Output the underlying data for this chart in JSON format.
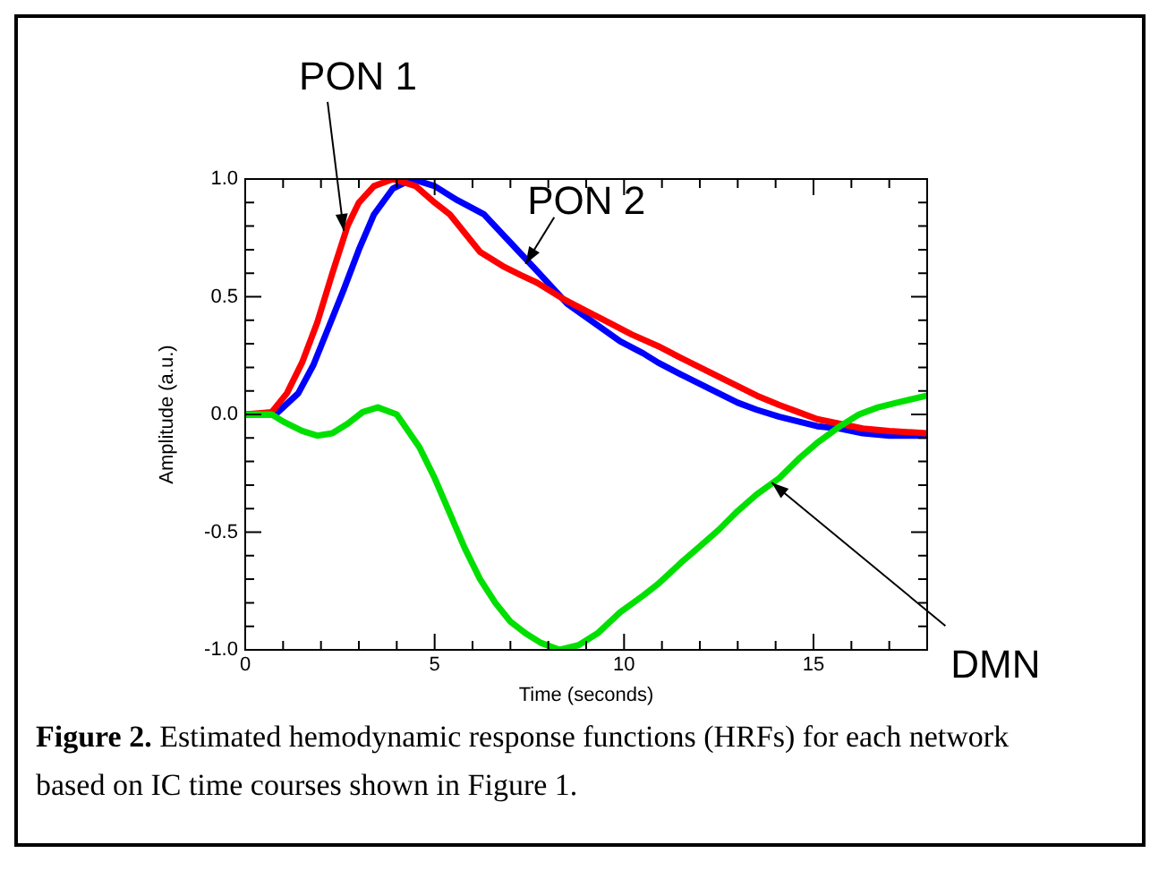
{
  "chart_data": {
    "type": "line",
    "xlabel": "Time (seconds)",
    "ylabel": "Amplitude (a.u.)",
    "xlim": [
      0,
      18
    ],
    "ylim": [
      -1,
      1
    ],
    "xticks": [
      0,
      {
        "value": 1,
        "label": null
      },
      {
        "value": 2,
        "label": null
      },
      {
        "value": 3,
        "label": null
      },
      {
        "value": 4,
        "label": null
      },
      5,
      {
        "value": 6,
        "label": null
      },
      {
        "value": 7,
        "label": null
      },
      {
        "value": 8,
        "label": null
      },
      {
        "value": 9,
        "label": null
      },
      10,
      {
        "value": 11,
        "label": null
      },
      {
        "value": 12,
        "label": null
      },
      {
        "value": 13,
        "label": null
      },
      {
        "value": 14,
        "label": null
      },
      15,
      {
        "value": 16,
        "label": null
      },
      {
        "value": 17,
        "label": null
      }
    ],
    "yticks": [
      {
        "value": -1,
        "label": "-1.0"
      },
      {
        "value": -0.9,
        "label": null
      },
      {
        "value": -0.8,
        "label": null
      },
      {
        "value": -0.7,
        "label": null
      },
      {
        "value": -0.6,
        "label": null
      },
      -0.5,
      {
        "value": -0.4,
        "label": null
      },
      {
        "value": -0.3,
        "label": null
      },
      {
        "value": -0.2,
        "label": null
      },
      {
        "value": -0.1,
        "label": null
      },
      {
        "value": 0,
        "label": "0.0"
      },
      {
        "value": 0.1,
        "label": null
      },
      {
        "value": 0.2,
        "label": null
      },
      {
        "value": 0.3,
        "label": null
      },
      {
        "value": 0.4,
        "label": null
      },
      0.5,
      {
        "value": 0.6,
        "label": null
      },
      {
        "value": 0.7,
        "label": null
      },
      {
        "value": 0.8,
        "label": null
      },
      {
        "value": 0.9,
        "label": null
      },
      {
        "value": 1,
        "label": "1.0"
      }
    ],
    "grid": false,
    "legend": false,
    "marker": "none",
    "line_style": "solid",
    "series": [
      {
        "color": "#00e000",
        "x": [
          0,
          0.7,
          1.0,
          1.5,
          1.9,
          2.3,
          2.7,
          3.1,
          3.5,
          4.0,
          4.6,
          5.0,
          5.4,
          5.8,
          6.2,
          6.6,
          7.0,
          7.4,
          7.8,
          8.3,
          8.8,
          9.3,
          9.9,
          10.5,
          10.9,
          11.5,
          12.0,
          12.5,
          13.0,
          13.5,
          14.1,
          14.6,
          15.1,
          15.7,
          16.2,
          16.7,
          17.2,
          18
        ],
        "values": [
          0,
          0,
          -0.03,
          -0.07,
          -0.09,
          -0.08,
          -0.04,
          0.01,
          0.03,
          0,
          -0.14,
          -0.27,
          -0.42,
          -0.57,
          -0.7,
          -0.8,
          -0.88,
          -0.93,
          -0.97,
          -1.0,
          -0.98,
          -0.93,
          -0.84,
          -0.77,
          -0.72,
          -0.63,
          -0.56,
          -0.49,
          -0.41,
          -0.34,
          -0.27,
          -0.19,
          -0.12,
          -0.05,
          0,
          0.03,
          0.05,
          0.08
        ]
      },
      {
        "color": "#ff0000",
        "x": [
          0,
          0.7,
          1.1,
          1.5,
          1.9,
          2.3,
          2.7,
          3.0,
          3.4,
          3.9,
          4.5,
          5.0,
          5.4,
          5.8,
          6.2,
          6.8,
          7.3,
          7.7,
          8.4,
          9.0,
          9.6,
          10.2,
          10.9,
          11.5,
          12.0,
          12.5,
          13.0,
          13.5,
          14.1,
          14.6,
          15.1,
          15.7,
          16.3,
          17.0,
          18
        ],
        "values": [
          0,
          0.01,
          0.09,
          0.22,
          0.39,
          0.6,
          0.8,
          0.9,
          0.97,
          1.0,
          0.97,
          0.9,
          0.85,
          0.77,
          0.69,
          0.63,
          0.59,
          0.56,
          0.49,
          0.44,
          0.39,
          0.34,
          0.29,
          0.24,
          0.2,
          0.16,
          0.12,
          0.08,
          0.04,
          0.01,
          -0.02,
          -0.04,
          -0.06,
          -0.07,
          -0.08
        ]
      },
      {
        "color": "#0000ff",
        "x": [
          0,
          0.8,
          1.0,
          1.4,
          1.8,
          2.2,
          2.6,
          3.0,
          3.4,
          3.9,
          4.4,
          5.0,
          5.6,
          6.3,
          7.0,
          7.7,
          8.5,
          9.2,
          9.9,
          10.5,
          10.9,
          11.5,
          12.0,
          12.5,
          13.0,
          13.5,
          14.1,
          14.6,
          15.1,
          15.7,
          16.3,
          17.0,
          18
        ],
        "values": [
          0,
          0,
          0.03,
          0.09,
          0.21,
          0.37,
          0.53,
          0.7,
          0.85,
          0.96,
          1.0,
          0.97,
          0.91,
          0.85,
          0.73,
          0.61,
          0.47,
          0.39,
          0.31,
          0.26,
          0.22,
          0.17,
          0.13,
          0.09,
          0.05,
          0.02,
          -0.01,
          -0.03,
          -0.05,
          -0.06,
          -0.08,
          -0.09,
          -0.09
        ]
      }
    ],
    "annotations": [
      {
        "text": "PON 1",
        "x": 2.6,
        "y": 0.78
      },
      {
        "text": "PON 2",
        "x": 7.4,
        "y": 0.64
      },
      {
        "text": "DMN",
        "x": 13.9,
        "y": -0.29
      },
      "Figure 2.",
      "Estimated hemodynamic response functions (HRFs) for each network based on IC time courses shown in Figure 1."
    ]
  }
}
